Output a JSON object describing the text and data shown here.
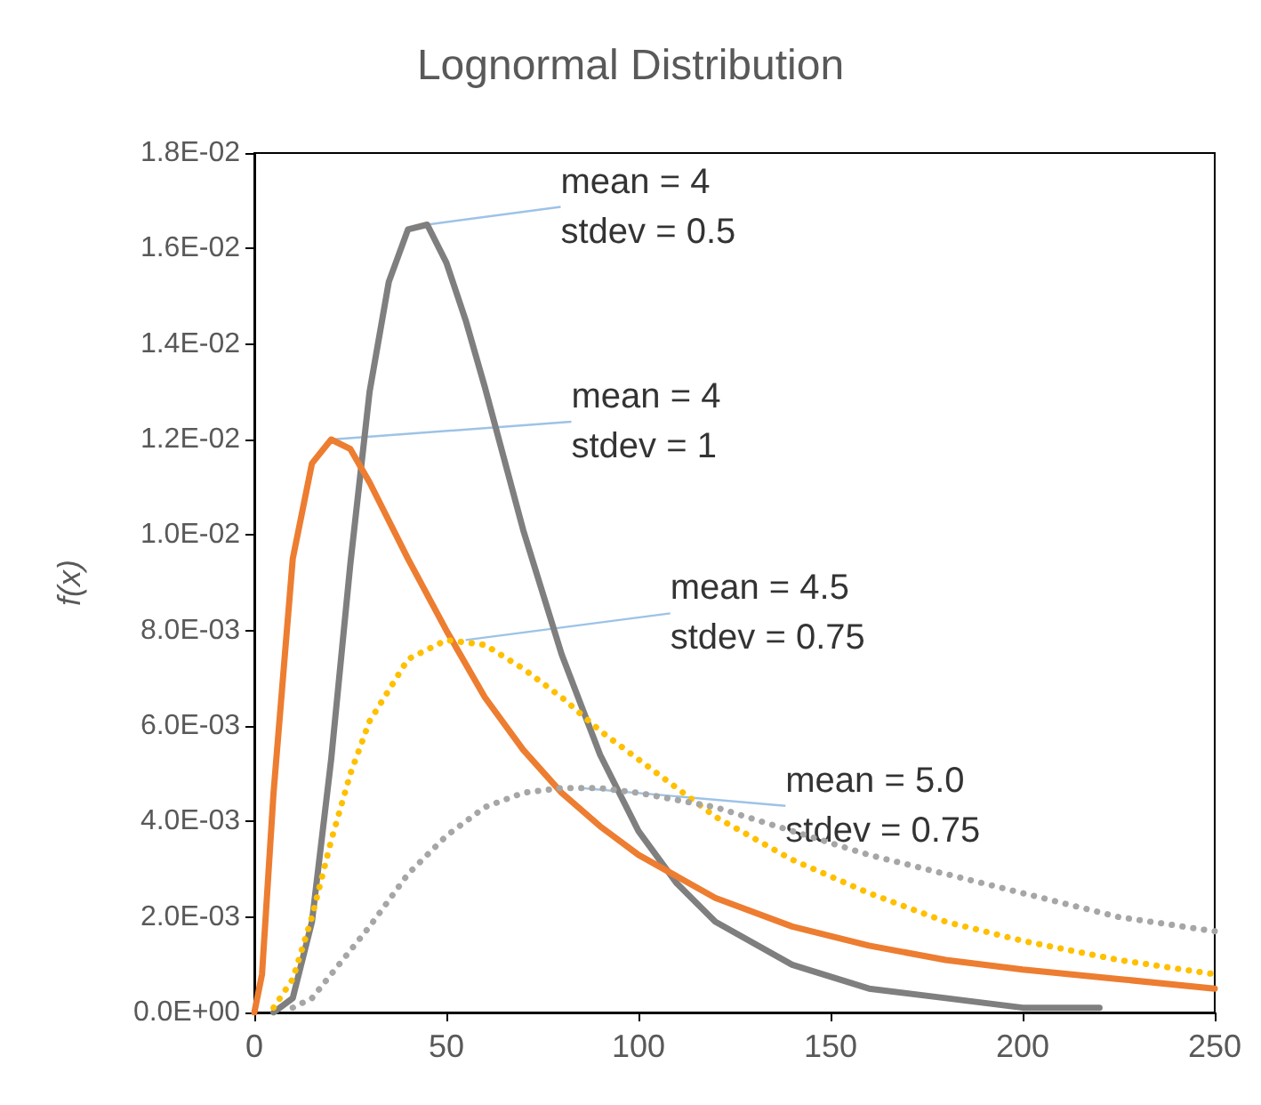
{
  "chart_data": {
    "type": "line",
    "title": "Lognormal Distribution",
    "ylabel": "f(x)",
    "xlim": [
      0,
      250
    ],
    "xticks": [
      0,
      50,
      100,
      150,
      200,
      250
    ],
    "ylim": [
      0,
      0.018
    ],
    "yticks": [
      {
        "value": 0,
        "label": "0.0E+00"
      },
      {
        "value": 0.002,
        "label": "2.0E-03"
      },
      {
        "value": 0.004,
        "label": "4.0E-03"
      },
      {
        "value": 0.006,
        "label": "6.0E-03"
      },
      {
        "value": 0.008,
        "label": "8.0E-03"
      },
      {
        "value": 0.01,
        "label": "1.0E-02"
      },
      {
        "value": 0.012,
        "label": "1.2E-02"
      },
      {
        "value": 0.014,
        "label": "1.4E-02"
      },
      {
        "value": 0.016,
        "label": "1.6E-02"
      },
      {
        "value": 0.018,
        "label": "1.8E-02"
      }
    ],
    "grid": false,
    "marker": "none",
    "series": [
      {
        "color": "#7f7f7f",
        "line_style": "solid",
        "x": [
          5,
          10,
          15,
          20,
          25,
          30,
          35,
          40,
          45,
          50,
          55,
          60,
          70,
          80,
          90,
          100,
          110,
          120,
          140,
          160,
          180,
          200,
          220
        ],
        "values": [
          0,
          0.0003,
          0.0019,
          0.0053,
          0.0094,
          0.013,
          0.0153,
          0.0164,
          0.0165,
          0.0157,
          0.0145,
          0.0131,
          0.0101,
          0.0075,
          0.0054,
          0.0038,
          0.0027,
          0.0019,
          0.001,
          0.0005,
          0.0003,
          0.0001,
          0.0001
        ]
      },
      {
        "color": "#ed7d31",
        "line_style": "solid",
        "x": [
          0,
          2,
          5,
          10,
          15,
          20,
          25,
          30,
          40,
          50,
          60,
          70,
          80,
          90,
          100,
          120,
          140,
          160,
          180,
          200,
          225,
          250
        ],
        "values": [
          0,
          0.0008,
          0.0046,
          0.0095,
          0.0115,
          0.012,
          0.0118,
          0.0111,
          0.0095,
          0.008,
          0.0066,
          0.0055,
          0.0046,
          0.0039,
          0.0033,
          0.0024,
          0.0018,
          0.0014,
          0.0011,
          0.0009,
          0.0007,
          0.0005
        ]
      },
      {
        "color": "#ffc000",
        "line_style": "dotted",
        "x": [
          5,
          10,
          15,
          20,
          25,
          30,
          40,
          50,
          60,
          70,
          80,
          90,
          100,
          120,
          140,
          160,
          180,
          200,
          225,
          250
        ],
        "values": [
          0.0001,
          0.0007,
          0.002,
          0.0036,
          0.005,
          0.0061,
          0.0074,
          0.0078,
          0.0077,
          0.0072,
          0.0066,
          0.0059,
          0.0053,
          0.0041,
          0.0032,
          0.0025,
          0.0019,
          0.0015,
          0.0011,
          0.0008
        ]
      },
      {
        "color": "#a6a6a6",
        "line_style": "dotted",
        "x": [
          10,
          15,
          20,
          25,
          30,
          40,
          50,
          60,
          70,
          80,
          90,
          100,
          120,
          140,
          160,
          180,
          200,
          225,
          250
        ],
        "values": [
          0.0001,
          0.0003,
          0.0008,
          0.0013,
          0.0018,
          0.0029,
          0.0037,
          0.0043,
          0.0046,
          0.0047,
          0.0047,
          0.0046,
          0.0043,
          0.0038,
          0.0033,
          0.0029,
          0.0025,
          0.002,
          0.0017
        ]
      }
    ],
    "annotations": [
      {
        "text": "mean = 4\nstdev = 0.5",
        "x": 45,
        "y": 0.0165
      },
      {
        "text": "mean = 4\nstdev = 1",
        "x": 20,
        "y": 0.012
      },
      {
        "text": "mean = 4.5\nstdev = 0.75",
        "x": 55,
        "y": 0.0078
      },
      {
        "text": "mean = 5.0\nstdev = 0.75",
        "x": 85,
        "y": 0.0047
      }
    ]
  }
}
